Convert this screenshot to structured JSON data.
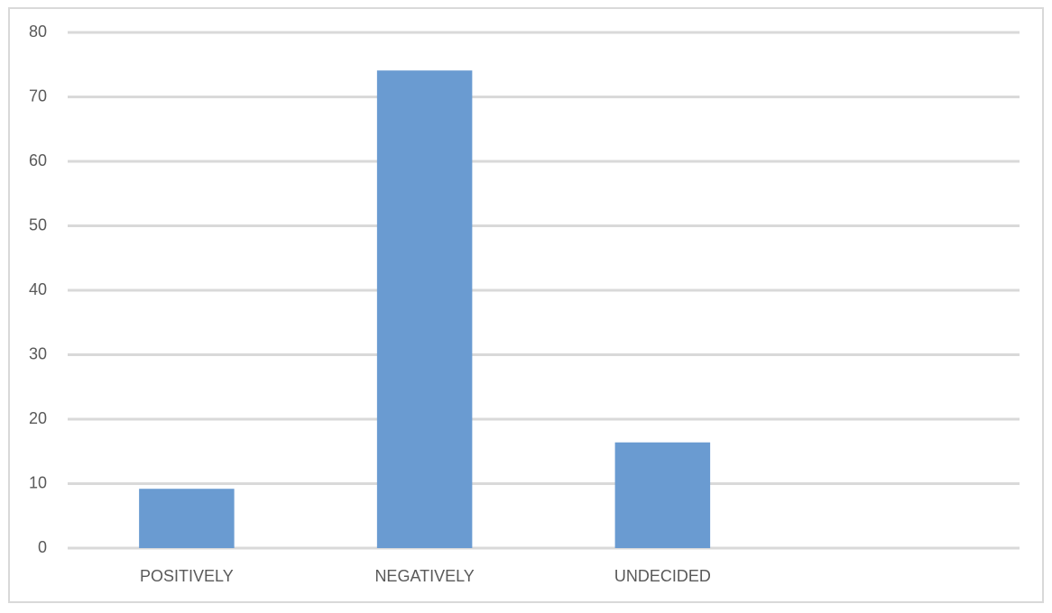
{
  "chart_data": {
    "type": "bar",
    "categories": [
      "POSITIVELY",
      "NEGATIVELY",
      "UNDECIDED",
      null
    ],
    "values": [
      9.2,
      74.1,
      16.4,
      null
    ],
    "color": "#6a9bd1",
    "ylim": [
      0,
      80
    ],
    "yticks": [
      0,
      10,
      20,
      30,
      40,
      50,
      60,
      70,
      80
    ],
    "grid": true
  }
}
